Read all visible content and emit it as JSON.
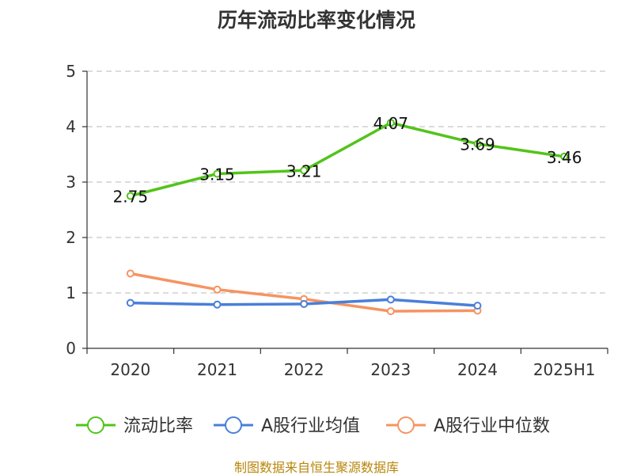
{
  "chart_data": {
    "type": "line",
    "title": "历年流动比率变化情况",
    "categories": [
      "2020",
      "2021",
      "2022",
      "2023",
      "2024",
      "2025H1"
    ],
    "ylim": [
      0,
      5
    ],
    "yticks": [
      0,
      1,
      2,
      3,
      4,
      5
    ],
    "grid": "horizontal-dashed",
    "legend_position": "bottom",
    "series": [
      {
        "name": "流动比率",
        "color": "#52c41a",
        "show_labels": true,
        "values": [
          2.75,
          3.15,
          3.21,
          4.07,
          3.69,
          3.46
        ],
        "labels": [
          "2.75",
          "3.15",
          "3.21",
          "4.07",
          "3.69",
          "3.46"
        ]
      },
      {
        "name": "A股行业均值",
        "color": "#4a7fd9",
        "show_labels": false,
        "values": [
          0.82,
          0.79,
          0.8,
          0.88,
          0.77,
          null
        ]
      },
      {
        "name": "A股行业中位数",
        "color": "#f59462",
        "show_labels": false,
        "values": [
          1.35,
          1.06,
          0.89,
          0.67,
          0.68,
          null
        ]
      }
    ]
  },
  "source_text": "制图数据来自恒生聚源数据库"
}
